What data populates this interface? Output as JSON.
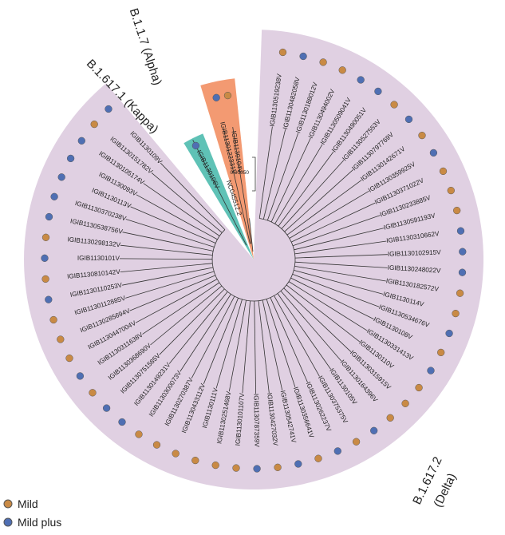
{
  "figure": {
    "reference_label": "NC045512.2",
    "scale_bar_label": "0.00050"
  },
  "colors": {
    "delta_fill": "#e0d0e2",
    "alpha_fill": "#f39a72",
    "kappa_fill": "#5fc2b6",
    "mild": "#c98a45",
    "mild_plus": "#4f6fb3",
    "dot_stroke": "#555555",
    "line": "#333333"
  },
  "clades": [
    {
      "key": "alpha",
      "label": "B.1.1.7 (Alpha)"
    },
    {
      "key": "kappa",
      "label": "B.1.617.1 (Kappa)"
    },
    {
      "key": "delta",
      "label_lines": [
        "B.1.617.2",
        "(Delta)"
      ]
    }
  ],
  "legend": [
    {
      "label": "Mild",
      "category": "mild"
    },
    {
      "label": "Mild plus",
      "category": "mild_plus"
    }
  ],
  "leaves": [
    {
      "id": "IGIB1130519238V",
      "clade": "delta",
      "severity": "mild"
    },
    {
      "id": "IGIB1130482058V",
      "clade": "delta",
      "severity": "mild_plus"
    },
    {
      "id": "IGIB1130188012V",
      "clade": "delta",
      "severity": "mild"
    },
    {
      "id": "IGIB1130494002V",
      "clade": "delta",
      "severity": "mild"
    },
    {
      "id": "IGIB1130509041V",
      "clade": "delta",
      "severity": "mild_plus"
    },
    {
      "id": "IGIB1130490051V",
      "clade": "delta",
      "severity": "mild_plus"
    },
    {
      "id": "IGIB1130527553V",
      "clade": "delta",
      "severity": "mild"
    },
    {
      "id": "IGIB1130797769V",
      "clade": "delta",
      "severity": "mild_plus"
    },
    {
      "id": "IGIB1130142671V",
      "clade": "delta",
      "severity": "mild"
    },
    {
      "id": "IGIB1130359925V",
      "clade": "delta",
      "severity": "mild_plus"
    },
    {
      "id": "IGIB1130371022V",
      "clade": "delta",
      "severity": "mild"
    },
    {
      "id": "IGIB1130233885V",
      "clade": "delta",
      "severity": "mild"
    },
    {
      "id": "IGIB1130591193V",
      "clade": "delta",
      "severity": "mild"
    },
    {
      "id": "IGIB1130310662V",
      "clade": "delta",
      "severity": "mild_plus"
    },
    {
      "id": "IGIB1130102915V",
      "clade": "delta",
      "severity": "mild_plus"
    },
    {
      "id": "IGIB1130248022V",
      "clade": "delta",
      "severity": "mild_plus"
    },
    {
      "id": "IGIB1130182572V",
      "clade": "delta",
      "severity": "mild"
    },
    {
      "id": "IGIB1130114V",
      "clade": "delta",
      "severity": "mild"
    },
    {
      "id": "IGIB1130534676V",
      "clade": "delta",
      "severity": "mild_plus"
    },
    {
      "id": "IGIB1130108V",
      "clade": "delta",
      "severity": "mild"
    },
    {
      "id": "IGIB1130331413V",
      "clade": "delta",
      "severity": "mild_plus"
    },
    {
      "id": "IGIB1130110V",
      "clade": "delta",
      "severity": "mild"
    },
    {
      "id": "IGIB1130315915V",
      "clade": "delta",
      "severity": "mild"
    },
    {
      "id": "IGIB1130164396V",
      "clade": "delta",
      "severity": "mild"
    },
    {
      "id": "IGIB1130105V",
      "clade": "delta",
      "severity": "mild_plus"
    },
    {
      "id": "IGIB1130375375V",
      "clade": "delta",
      "severity": "mild"
    },
    {
      "id": "IGIB1130262237V",
      "clade": "delta",
      "severity": "mild_plus"
    },
    {
      "id": "IGIB1130356641V",
      "clade": "delta",
      "severity": "mild"
    },
    {
      "id": "IGIB1130542741V",
      "clade": "delta",
      "severity": "mild_plus"
    },
    {
      "id": "IGIB1130427032V",
      "clade": "delta",
      "severity": "mild"
    },
    {
      "id": "IGIB1130787359V",
      "clade": "delta",
      "severity": "mild_plus"
    },
    {
      "id": "IGIB1130101107V",
      "clade": "delta",
      "severity": "mild"
    },
    {
      "id": "IGIB1130251468V",
      "clade": "delta",
      "severity": "mild"
    },
    {
      "id": "IGIB1130111V",
      "clade": "delta",
      "severity": "mild"
    },
    {
      "id": "IGIB1130433112V",
      "clade": "delta",
      "severity": "mild"
    },
    {
      "id": "IGIB1130270387V",
      "clade": "delta",
      "severity": "mild"
    },
    {
      "id": "IGIB1130300073V",
      "clade": "delta",
      "severity": "mild"
    },
    {
      "id": "IGIB1130149231V",
      "clade": "delta",
      "severity": "mild_plus"
    },
    {
      "id": "IGIB1130751585V",
      "clade": "delta",
      "severity": "mild_plus"
    },
    {
      "id": "IGIB1130368690V",
      "clade": "delta",
      "severity": "mild"
    },
    {
      "id": "IGIB1130311638V",
      "clade": "delta",
      "severity": "mild_plus"
    },
    {
      "id": "IGIB1130447004V",
      "clade": "delta",
      "severity": "mild"
    },
    {
      "id": "IGIB1130285694V",
      "clade": "delta",
      "severity": "mild"
    },
    {
      "id": "IGIB1130112885V",
      "clade": "delta",
      "severity": "mild"
    },
    {
      "id": "IGIB1130110253V",
      "clade": "delta",
      "severity": "mild_plus"
    },
    {
      "id": "IGIB1130810142V",
      "clade": "delta",
      "severity": "mild"
    },
    {
      "id": "IGIB1130101V",
      "clade": "delta",
      "severity": "mild_plus"
    },
    {
      "id": "IGIB1130298132V",
      "clade": "delta",
      "severity": "mild"
    },
    {
      "id": "IGIB1130538756V",
      "clade": "delta",
      "severity": "mild_plus"
    },
    {
      "id": "IGIB1130370238V",
      "clade": "delta",
      "severity": "mild_plus"
    },
    {
      "id": "IGIB1130113V",
      "clade": "delta",
      "severity": "mild_plus"
    },
    {
      "id": "IGIB1130093V",
      "clade": "delta",
      "severity": "mild_plus"
    },
    {
      "id": "IGIB1130105174V",
      "clade": "delta",
      "severity": "mild_plus"
    },
    {
      "id": "IGIB1130151782V",
      "clade": "delta",
      "severity": "mild"
    },
    {
      "id": "IGIB1130109V",
      "clade": "delta",
      "severity": "mild_plus"
    },
    {
      "id": "IGIB1130106V",
      "clade": "kappa",
      "severity": "mild_plus"
    },
    {
      "id": "IGIB1130122331V",
      "clade": "alpha",
      "severity": "mild_plus"
    },
    {
      "id": "IGIB1130104V",
      "clade": "alpha",
      "severity": "mild"
    }
  ]
}
